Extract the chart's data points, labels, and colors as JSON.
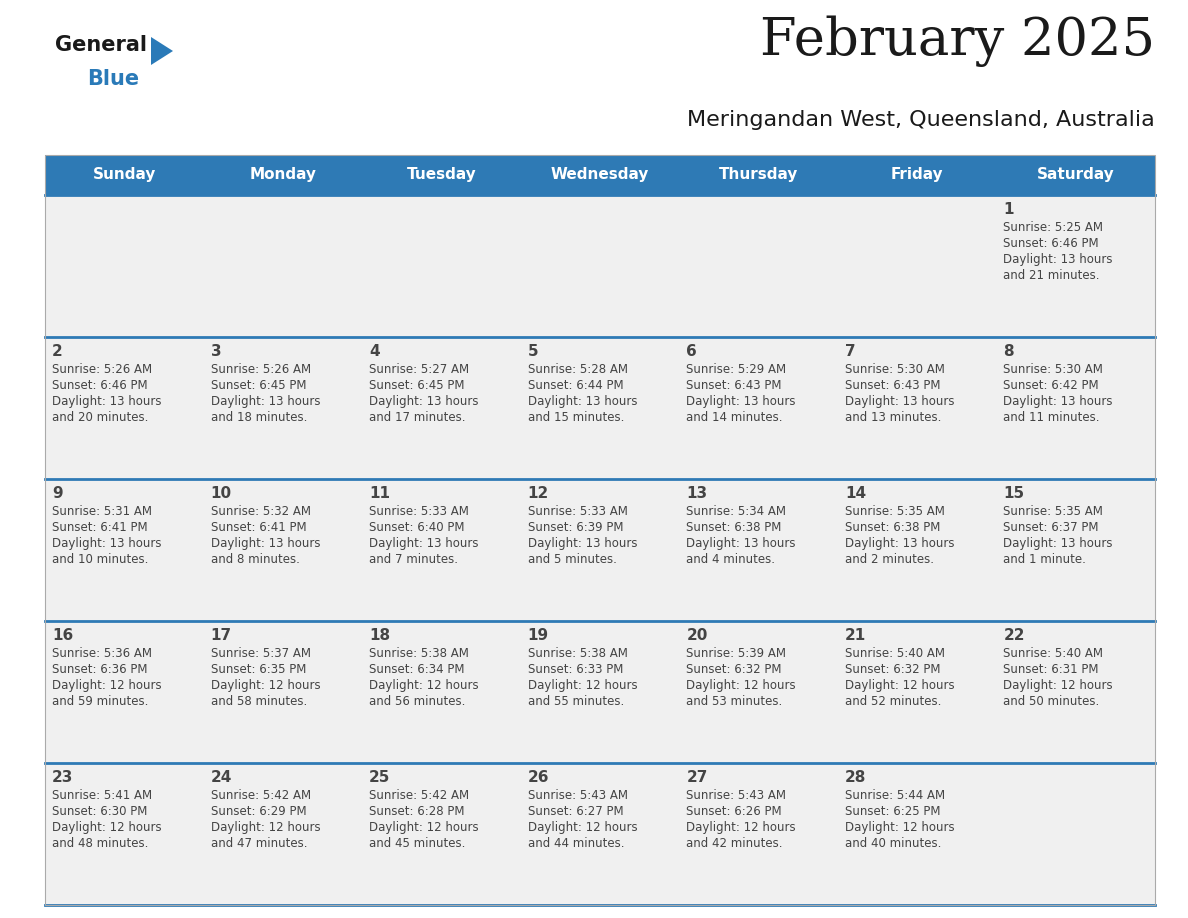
{
  "title": "February 2025",
  "subtitle": "Meringandan West, Queensland, Australia",
  "header_bg": "#2e7ab5",
  "header_text": "#ffffff",
  "days_of_week": [
    "Sunday",
    "Monday",
    "Tuesday",
    "Wednesday",
    "Thursday",
    "Friday",
    "Saturday"
  ],
  "cell_bg": "#f0f0f0",
  "divider_color": "#2e7ab5",
  "text_color": "#444444",
  "number_color": "#444444",
  "logo_general_color": "#1a1a1a",
  "logo_blue_color": "#2a7ab8",
  "logo_triangle_color": "#2a7ab8",
  "title_color": "#1a1a1a",
  "subtitle_color": "#1a1a1a",
  "weeks": [
    [
      {
        "day": "",
        "lines": []
      },
      {
        "day": "",
        "lines": []
      },
      {
        "day": "",
        "lines": []
      },
      {
        "day": "",
        "lines": []
      },
      {
        "day": "",
        "lines": []
      },
      {
        "day": "",
        "lines": []
      },
      {
        "day": "1",
        "lines": [
          "Sunrise: 5:25 AM",
          "Sunset: 6:46 PM",
          "Daylight: 13 hours",
          "and 21 minutes."
        ]
      }
    ],
    [
      {
        "day": "2",
        "lines": [
          "Sunrise: 5:26 AM",
          "Sunset: 6:46 PM",
          "Daylight: 13 hours",
          "and 20 minutes."
        ]
      },
      {
        "day": "3",
        "lines": [
          "Sunrise: 5:26 AM",
          "Sunset: 6:45 PM",
          "Daylight: 13 hours",
          "and 18 minutes."
        ]
      },
      {
        "day": "4",
        "lines": [
          "Sunrise: 5:27 AM",
          "Sunset: 6:45 PM",
          "Daylight: 13 hours",
          "and 17 minutes."
        ]
      },
      {
        "day": "5",
        "lines": [
          "Sunrise: 5:28 AM",
          "Sunset: 6:44 PM",
          "Daylight: 13 hours",
          "and 15 minutes."
        ]
      },
      {
        "day": "6",
        "lines": [
          "Sunrise: 5:29 AM",
          "Sunset: 6:43 PM",
          "Daylight: 13 hours",
          "and 14 minutes."
        ]
      },
      {
        "day": "7",
        "lines": [
          "Sunrise: 5:30 AM",
          "Sunset: 6:43 PM",
          "Daylight: 13 hours",
          "and 13 minutes."
        ]
      },
      {
        "day": "8",
        "lines": [
          "Sunrise: 5:30 AM",
          "Sunset: 6:42 PM",
          "Daylight: 13 hours",
          "and 11 minutes."
        ]
      }
    ],
    [
      {
        "day": "9",
        "lines": [
          "Sunrise: 5:31 AM",
          "Sunset: 6:41 PM",
          "Daylight: 13 hours",
          "and 10 minutes."
        ]
      },
      {
        "day": "10",
        "lines": [
          "Sunrise: 5:32 AM",
          "Sunset: 6:41 PM",
          "Daylight: 13 hours",
          "and 8 minutes."
        ]
      },
      {
        "day": "11",
        "lines": [
          "Sunrise: 5:33 AM",
          "Sunset: 6:40 PM",
          "Daylight: 13 hours",
          "and 7 minutes."
        ]
      },
      {
        "day": "12",
        "lines": [
          "Sunrise: 5:33 AM",
          "Sunset: 6:39 PM",
          "Daylight: 13 hours",
          "and 5 minutes."
        ]
      },
      {
        "day": "13",
        "lines": [
          "Sunrise: 5:34 AM",
          "Sunset: 6:38 PM",
          "Daylight: 13 hours",
          "and 4 minutes."
        ]
      },
      {
        "day": "14",
        "lines": [
          "Sunrise: 5:35 AM",
          "Sunset: 6:38 PM",
          "Daylight: 13 hours",
          "and 2 minutes."
        ]
      },
      {
        "day": "15",
        "lines": [
          "Sunrise: 5:35 AM",
          "Sunset: 6:37 PM",
          "Daylight: 13 hours",
          "and 1 minute."
        ]
      }
    ],
    [
      {
        "day": "16",
        "lines": [
          "Sunrise: 5:36 AM",
          "Sunset: 6:36 PM",
          "Daylight: 12 hours",
          "and 59 minutes."
        ]
      },
      {
        "day": "17",
        "lines": [
          "Sunrise: 5:37 AM",
          "Sunset: 6:35 PM",
          "Daylight: 12 hours",
          "and 58 minutes."
        ]
      },
      {
        "day": "18",
        "lines": [
          "Sunrise: 5:38 AM",
          "Sunset: 6:34 PM",
          "Daylight: 12 hours",
          "and 56 minutes."
        ]
      },
      {
        "day": "19",
        "lines": [
          "Sunrise: 5:38 AM",
          "Sunset: 6:33 PM",
          "Daylight: 12 hours",
          "and 55 minutes."
        ]
      },
      {
        "day": "20",
        "lines": [
          "Sunrise: 5:39 AM",
          "Sunset: 6:32 PM",
          "Daylight: 12 hours",
          "and 53 minutes."
        ]
      },
      {
        "day": "21",
        "lines": [
          "Sunrise: 5:40 AM",
          "Sunset: 6:32 PM",
          "Daylight: 12 hours",
          "and 52 minutes."
        ]
      },
      {
        "day": "22",
        "lines": [
          "Sunrise: 5:40 AM",
          "Sunset: 6:31 PM",
          "Daylight: 12 hours",
          "and 50 minutes."
        ]
      }
    ],
    [
      {
        "day": "23",
        "lines": [
          "Sunrise: 5:41 AM",
          "Sunset: 6:30 PM",
          "Daylight: 12 hours",
          "and 48 minutes."
        ]
      },
      {
        "day": "24",
        "lines": [
          "Sunrise: 5:42 AM",
          "Sunset: 6:29 PM",
          "Daylight: 12 hours",
          "and 47 minutes."
        ]
      },
      {
        "day": "25",
        "lines": [
          "Sunrise: 5:42 AM",
          "Sunset: 6:28 PM",
          "Daylight: 12 hours",
          "and 45 minutes."
        ]
      },
      {
        "day": "26",
        "lines": [
          "Sunrise: 5:43 AM",
          "Sunset: 6:27 PM",
          "Daylight: 12 hours",
          "and 44 minutes."
        ]
      },
      {
        "day": "27",
        "lines": [
          "Sunrise: 5:43 AM",
          "Sunset: 6:26 PM",
          "Daylight: 12 hours",
          "and 42 minutes."
        ]
      },
      {
        "day": "28",
        "lines": [
          "Sunrise: 5:44 AM",
          "Sunset: 6:25 PM",
          "Daylight: 12 hours",
          "and 40 minutes."
        ]
      },
      {
        "day": "",
        "lines": []
      }
    ]
  ]
}
